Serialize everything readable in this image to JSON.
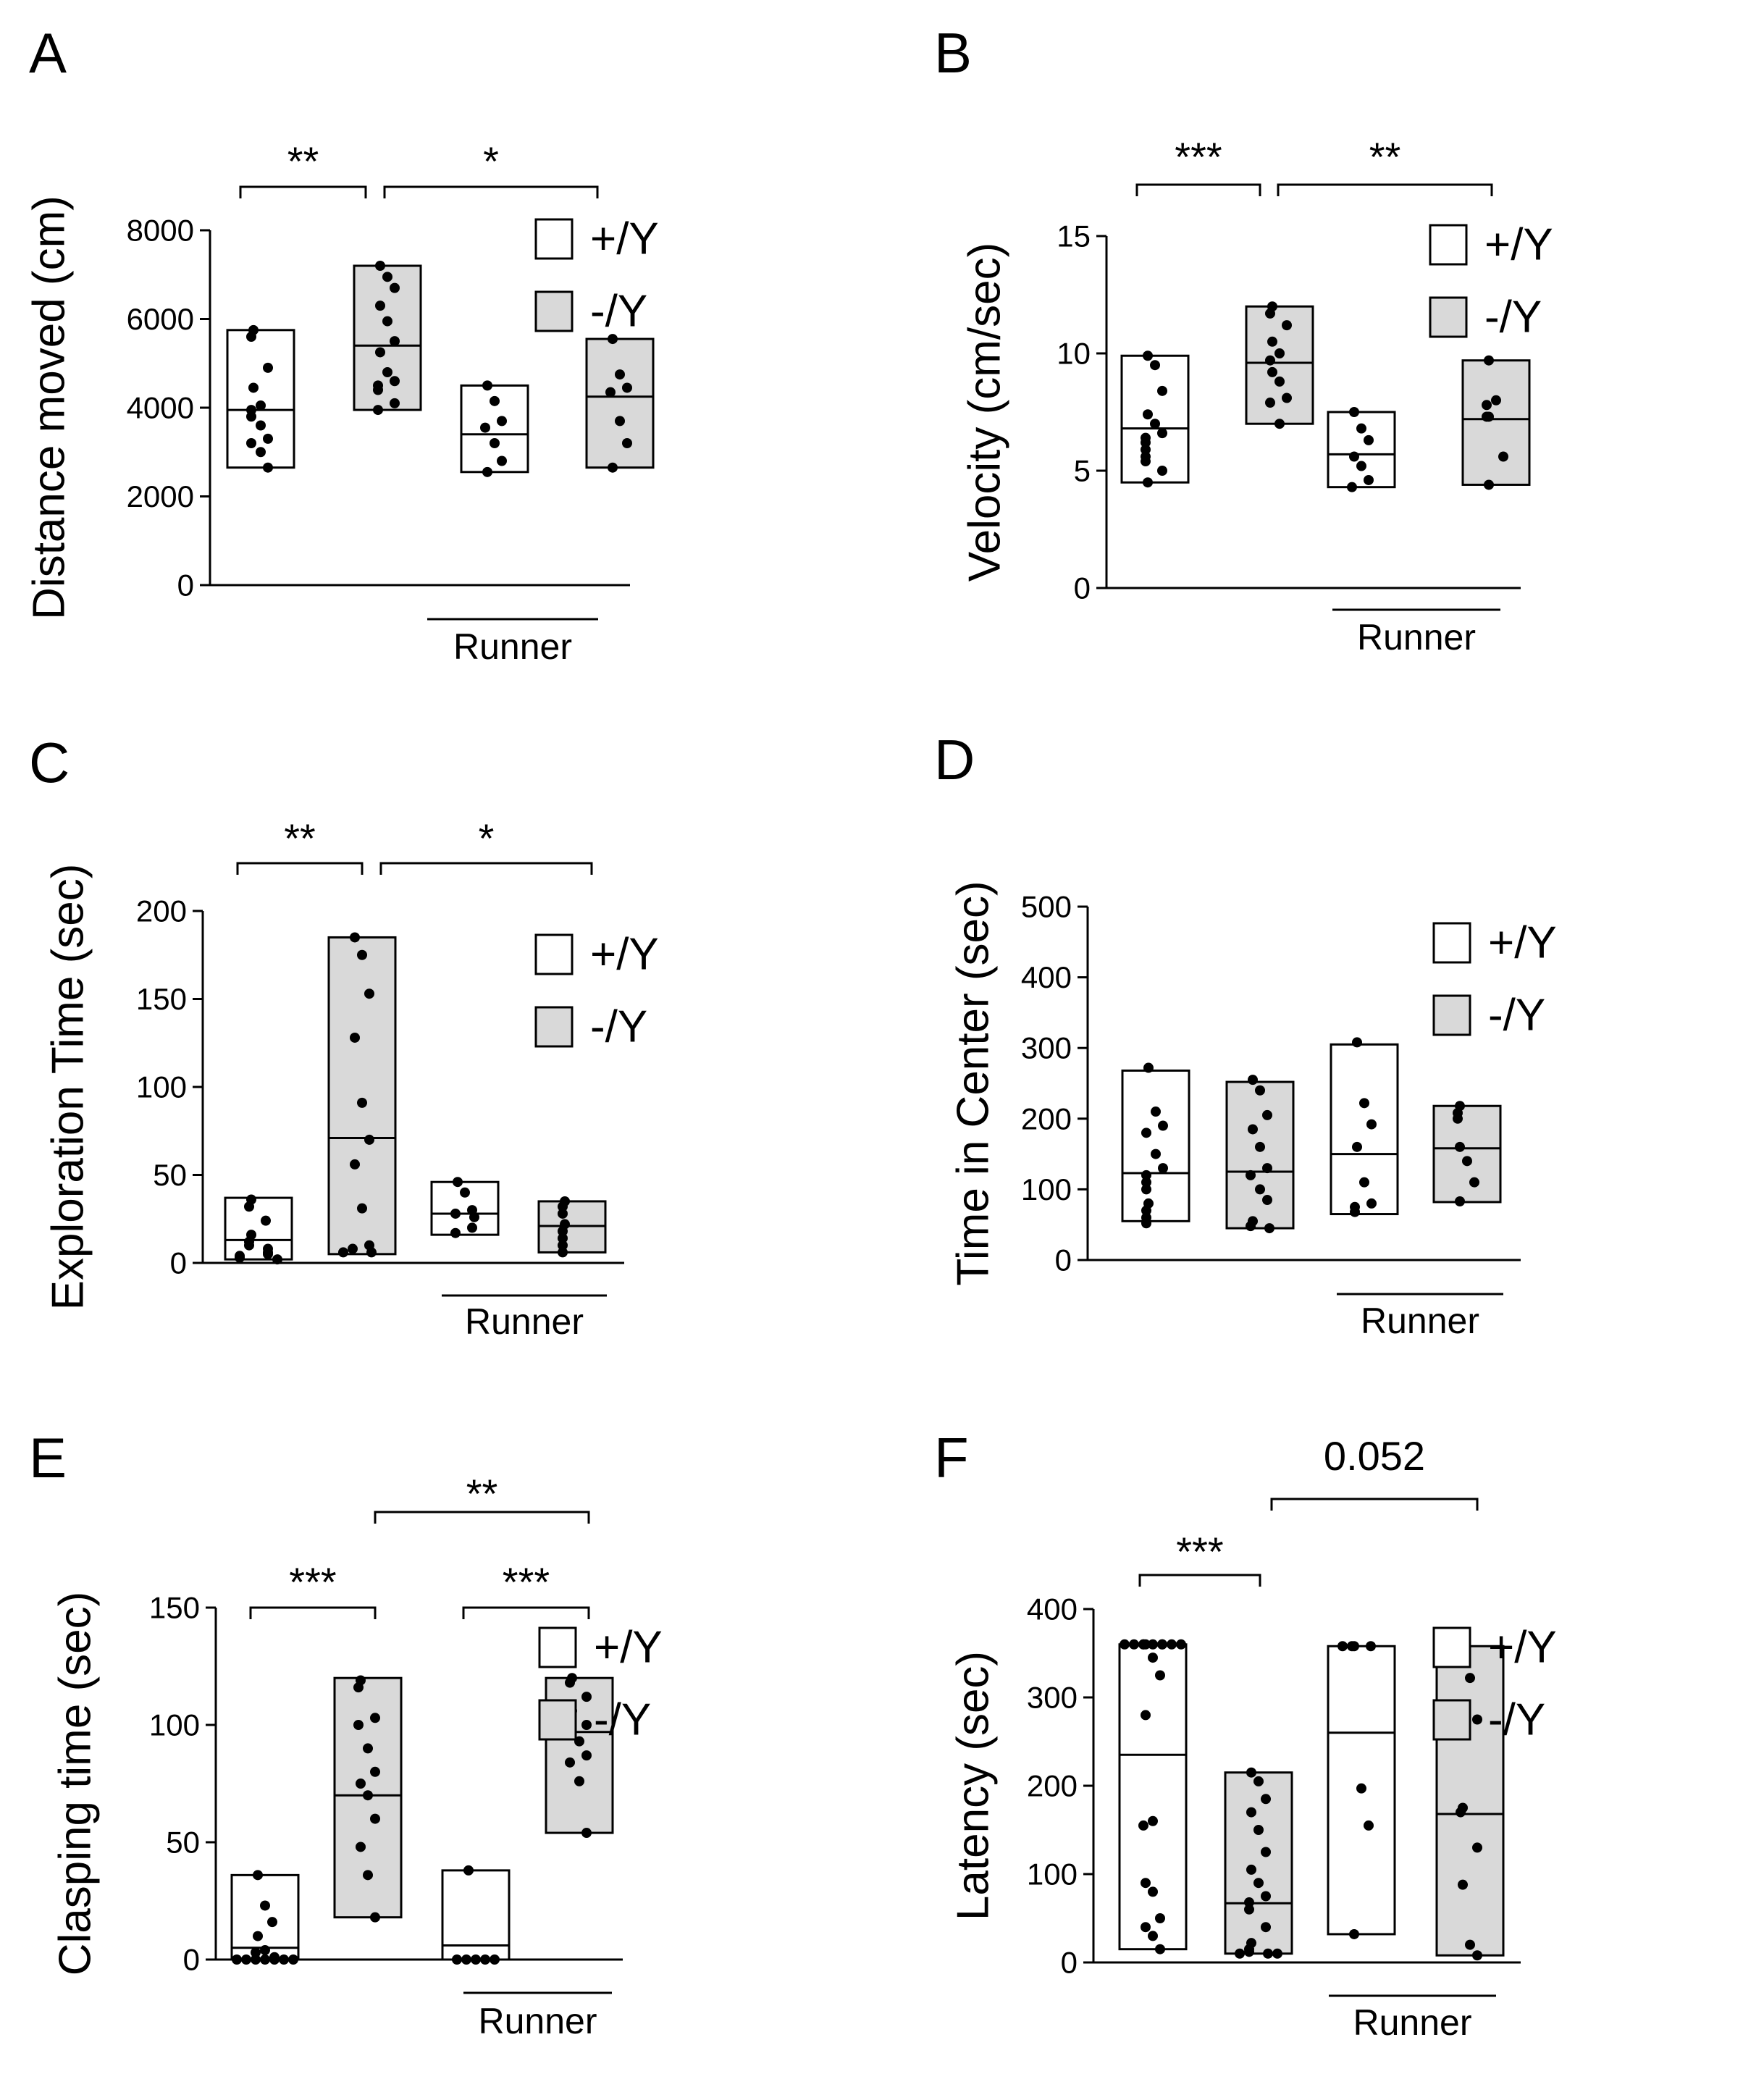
{
  "legend": [
    {
      "label": "+/Y",
      "color": "#ffffff"
    },
    {
      "label": "-/Y",
      "color": "#d9d9d9"
    }
  ],
  "runner_label": "Runner",
  "chart_data": [
    {
      "panel": "A",
      "type": "box",
      "ylabel": "Distance moved (cm)",
      "ylim": [
        0,
        8000
      ],
      "yticks": [
        0,
        2000,
        4000,
        6000,
        8000
      ],
      "groups": [
        {
          "genotype": "+/Y",
          "runner": false,
          "min": 2650,
          "max": 5750,
          "median": 3950,
          "points": [
            5750,
            5600,
            4900,
            4450,
            4050,
            3950,
            3800,
            3600,
            3300,
            3200,
            3000,
            2650
          ]
        },
        {
          "genotype": "-/Y",
          "runner": false,
          "min": 3950,
          "max": 7200,
          "median": 5400,
          "points": [
            7200,
            6950,
            6700,
            6300,
            5950,
            5500,
            5250,
            4800,
            4600,
            4500,
            4400,
            4100,
            3950
          ]
        },
        {
          "genotype": "+/Y",
          "runner": true,
          "min": 2550,
          "max": 4500,
          "median": 3400,
          "points": [
            4500,
            4150,
            3700,
            3550,
            3200,
            2800,
            2550
          ]
        },
        {
          "genotype": "-/Y",
          "runner": true,
          "min": 2650,
          "max": 5550,
          "median": 4250,
          "points": [
            5550,
            4750,
            4450,
            4350,
            3700,
            3200,
            2650
          ]
        }
      ],
      "brackets": [
        {
          "from": 0,
          "to": 1,
          "label": "**"
        },
        {
          "from": 1,
          "to": 3,
          "label": "*"
        }
      ]
    },
    {
      "panel": "B",
      "type": "box",
      "ylabel": "Velocity (cm/sec)",
      "ylim": [
        0,
        15
      ],
      "yticks": [
        0,
        5,
        10,
        15
      ],
      "groups": [
        {
          "genotype": "+/Y",
          "runner": false,
          "min": 4.5,
          "max": 9.9,
          "median": 6.8,
          "points": [
            9.9,
            9.5,
            8.4,
            7.4,
            7.0,
            6.6,
            6.4,
            6.2,
            5.9,
            5.6,
            5.4,
            5.0,
            4.5
          ]
        },
        {
          "genotype": "-/Y",
          "runner": false,
          "min": 7.0,
          "max": 12.0,
          "median": 9.6,
          "points": [
            12.0,
            11.7,
            11.2,
            10.5,
            10.0,
            9.7,
            9.2,
            8.8,
            8.1,
            7.9,
            7.0
          ]
        },
        {
          "genotype": "+/Y",
          "runner": true,
          "min": 4.3,
          "max": 7.5,
          "median": 5.7,
          "points": [
            7.5,
            6.8,
            6.3,
            5.6,
            5.2,
            4.6,
            4.3
          ]
        },
        {
          "genotype": "-/Y",
          "runner": true,
          "min": 4.4,
          "max": 9.7,
          "median": 7.2,
          "points": [
            9.7,
            8.0,
            7.8,
            7.3,
            7.3,
            5.6,
            4.4
          ]
        }
      ],
      "brackets": [
        {
          "from": 0,
          "to": 1,
          "label": "***"
        },
        {
          "from": 1,
          "to": 3,
          "label": "**"
        }
      ]
    },
    {
      "panel": "C",
      "type": "box",
      "ylabel": "Exploration Time (sec)",
      "ylim": [
        0,
        200
      ],
      "yticks": [
        0,
        50,
        100,
        150,
        200
      ],
      "groups": [
        {
          "genotype": "+/Y",
          "runner": false,
          "min": 2,
          "max": 37,
          "median": 13,
          "points": [
            36,
            32,
            24,
            16,
            12,
            10,
            8,
            6,
            5,
            4,
            3,
            2
          ]
        },
        {
          "genotype": "-/Y",
          "runner": false,
          "min": 5,
          "max": 185,
          "median": 71,
          "points": [
            185,
            175,
            153,
            128,
            91,
            70,
            56,
            31,
            10,
            8,
            6,
            6
          ]
        },
        {
          "genotype": "+/Y",
          "runner": true,
          "min": 16,
          "max": 46,
          "median": 28,
          "points": [
            46,
            40,
            30,
            28,
            26,
            20,
            17
          ]
        },
        {
          "genotype": "-/Y",
          "runner": true,
          "min": 6,
          "max": 35,
          "median": 21,
          "points": [
            35,
            32,
            28,
            22,
            18,
            14,
            10,
            6
          ]
        }
      ],
      "brackets": [
        {
          "from": 0,
          "to": 1,
          "label": "**"
        },
        {
          "from": 1,
          "to": 3,
          "label": "*"
        }
      ]
    },
    {
      "panel": "D",
      "type": "box",
      "ylabel": "Time in Center (sec)",
      "ylim": [
        0,
        500
      ],
      "yticks": [
        0,
        100,
        200,
        300,
        400,
        500
      ],
      "groups": [
        {
          "genotype": "+/Y",
          "runner": false,
          "min": 55,
          "max": 268,
          "median": 123,
          "points": [
            272,
            210,
            190,
            180,
            150,
            130,
            120,
            110,
            100,
            80,
            70,
            60,
            52
          ]
        },
        {
          "genotype": "-/Y",
          "runner": false,
          "min": 45,
          "max": 252,
          "median": 125,
          "points": [
            255,
            240,
            205,
            185,
            160,
            130,
            120,
            100,
            85,
            55,
            48,
            45
          ]
        },
        {
          "genotype": "+/Y",
          "runner": true,
          "min": 65,
          "max": 305,
          "median": 150,
          "points": [
            308,
            222,
            192,
            160,
            110,
            80,
            75,
            68
          ]
        },
        {
          "genotype": "-/Y",
          "runner": true,
          "min": 82,
          "max": 218,
          "median": 158,
          "points": [
            218,
            208,
            200,
            160,
            140,
            110,
            83
          ]
        }
      ],
      "brackets": []
    },
    {
      "panel": "E",
      "type": "box",
      "ylabel": "Clasping time (sec)",
      "ylim": [
        0,
        150
      ],
      "yticks": [
        0,
        50,
        100,
        150
      ],
      "groups": [
        {
          "genotype": "+/Y",
          "runner": false,
          "min": 0,
          "max": 36,
          "median": 5,
          "points": [
            36,
            23,
            16,
            10,
            4,
            3,
            1,
            0,
            0,
            0,
            0,
            0,
            0,
            0
          ]
        },
        {
          "genotype": "-/Y",
          "runner": false,
          "min": 18,
          "max": 120,
          "median": 70,
          "points": [
            119,
            116,
            103,
            100,
            90,
            80,
            75,
            70,
            60,
            48,
            36,
            18
          ]
        },
        {
          "genotype": "+/Y",
          "runner": true,
          "min": 0,
          "max": 38,
          "median": 6,
          "points": [
            38,
            0,
            0,
            0,
            0,
            0
          ]
        },
        {
          "genotype": "-/Y",
          "runner": true,
          "min": 54,
          "max": 120,
          "median": 97,
          "points": [
            120,
            118,
            112,
            106,
            104,
            100,
            98,
            93,
            87,
            84,
            76,
            54
          ]
        }
      ],
      "brackets": [
        {
          "from": 0,
          "to": 1,
          "label": "***"
        },
        {
          "from": 2,
          "to": 3,
          "label": "***"
        },
        {
          "from": 1,
          "to": 3,
          "label": "**"
        }
      ]
    },
    {
      "panel": "F",
      "type": "box",
      "ylabel": "Latency (sec)",
      "ylim": [
        0,
        400
      ],
      "yticks": [
        0,
        100,
        200,
        300,
        400
      ],
      "groups": [
        {
          "genotype": "+/Y",
          "runner": false,
          "min": 15,
          "max": 360,
          "median": 235,
          "points": [
            360,
            360,
            360,
            360,
            360,
            360,
            360,
            360,
            360,
            360,
            345,
            325,
            280,
            160,
            155,
            90,
            80,
            50,
            40,
            30,
            15
          ]
        },
        {
          "genotype": "-/Y",
          "runner": false,
          "min": 10,
          "max": 215,
          "median": 67,
          "points": [
            215,
            205,
            185,
            170,
            150,
            125,
            105,
            90,
            75,
            68,
            60,
            40,
            22,
            15,
            12,
            10,
            10,
            10
          ]
        },
        {
          "genotype": "+/Y",
          "runner": true,
          "min": 32,
          "max": 358,
          "median": 260,
          "points": [
            358,
            358,
            358,
            358,
            197,
            155,
            32
          ]
        },
        {
          "genotype": "-/Y",
          "runner": true,
          "min": 8,
          "max": 358,
          "median": 168,
          "points": [
            358,
            322,
            275,
            175,
            170,
            130,
            88,
            20,
            8
          ]
        }
      ],
      "brackets": [
        {
          "from": 0,
          "to": 1,
          "label": "***"
        },
        {
          "from": 1,
          "to": 3,
          "label": "0.052"
        }
      ]
    }
  ]
}
